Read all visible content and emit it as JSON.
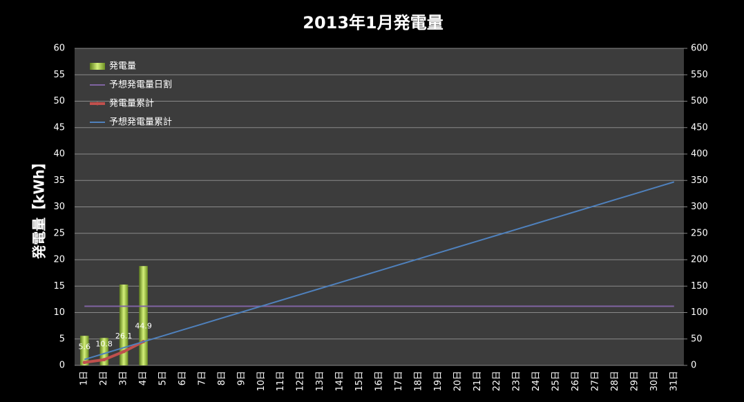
{
  "chart_data": {
    "type": "bar",
    "title": "2013年1月発電量",
    "y_label": "発電量【kWh】",
    "categories": [
      "1日",
      "2日",
      "3日",
      "4日",
      "5日",
      "6日",
      "7日",
      "8日",
      "9日",
      "10日",
      "11日",
      "12日",
      "13日",
      "14日",
      "15日",
      "16日",
      "17日",
      "18日",
      "19日",
      "20日",
      "21日",
      "22日",
      "23日",
      "24日",
      "25日",
      "26日",
      "27日",
      "28日",
      "29日",
      "30日",
      "31日"
    ],
    "ylim": [
      0,
      60
    ],
    "yticks": [
      0,
      5,
      10,
      15,
      20,
      25,
      30,
      35,
      40,
      45,
      50,
      55,
      60
    ],
    "y2lim": [
      0,
      600
    ],
    "y2ticks": [
      0,
      50,
      100,
      150,
      200,
      250,
      300,
      350,
      400,
      450,
      500,
      550,
      600
    ],
    "grid": true,
    "legend": "upper left",
    "series": [
      {
        "name": "発電量",
        "type": "bar",
        "color": "#9bc53d",
        "values": [
          5.6,
          5.2,
          15.3,
          18.8,
          null,
          null,
          null,
          null,
          null,
          null,
          null,
          null,
          null,
          null,
          null,
          null,
          null,
          null,
          null,
          null,
          null,
          null,
          null,
          null,
          null,
          null,
          null,
          null,
          null,
          null,
          null
        ]
      },
      {
        "name": "予想発電量日割",
        "type": "line",
        "color": "#8064a2",
        "values": [
          11.2,
          11.2,
          11.2,
          11.2,
          11.2,
          11.2,
          11.2,
          11.2,
          11.2,
          11.2,
          11.2,
          11.2,
          11.2,
          11.2,
          11.2,
          11.2,
          11.2,
          11.2,
          11.2,
          11.2,
          11.2,
          11.2,
          11.2,
          11.2,
          11.2,
          11.2,
          11.2,
          11.2,
          11.2,
          11.2,
          11.2
        ]
      },
      {
        "name": "発電量累計",
        "type": "line",
        "axis": "y2",
        "color": "#c0504d",
        "markers": true,
        "data_labels": true,
        "values": [
          5.6,
          10.8,
          26.1,
          44.9,
          null,
          null,
          null,
          null,
          null,
          null,
          null,
          null,
          null,
          null,
          null,
          null,
          null,
          null,
          null,
          null,
          null,
          null,
          null,
          null,
          null,
          null,
          null,
          null,
          null,
          null,
          null
        ]
      },
      {
        "name": "予想発電量累計",
        "type": "line",
        "axis": "y2",
        "color": "#4f81bd",
        "values": [
          11.2,
          22.4,
          33.6,
          44.8,
          56,
          67.2,
          78.4,
          89.6,
          100.8,
          112,
          123.2,
          134.4,
          145.6,
          156.8,
          168,
          179.2,
          190.4,
          201.6,
          212.8,
          224,
          235.2,
          246.4,
          257.6,
          268.8,
          280,
          291.2,
          302.4,
          313.6,
          324.8,
          336,
          347.2
        ]
      }
    ]
  }
}
